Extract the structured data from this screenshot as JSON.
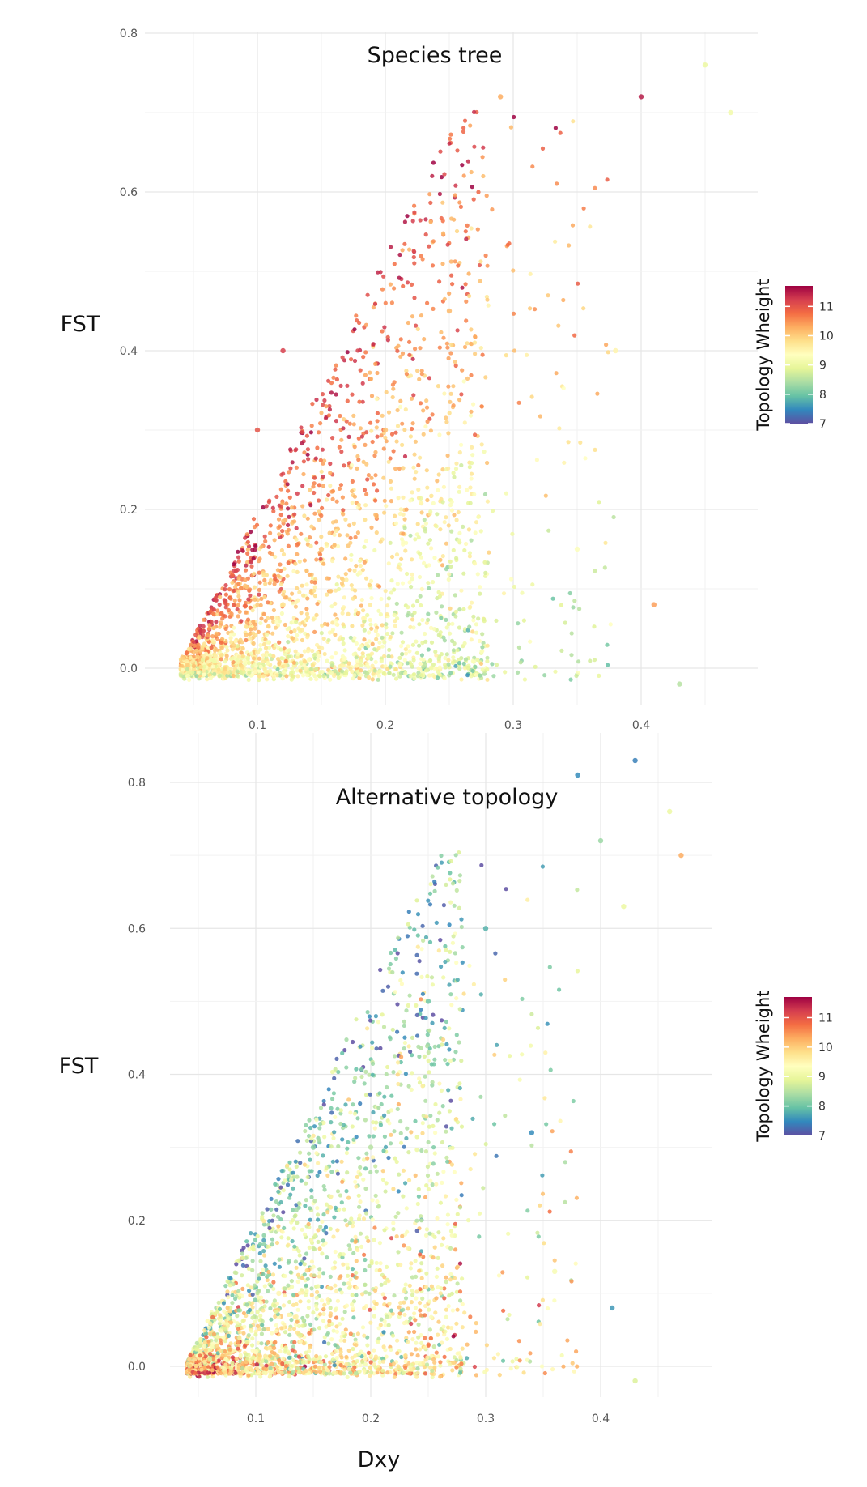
{
  "figure": {
    "xlabel": "Dxy"
  },
  "chart_data": [
    {
      "type": "scatter",
      "title": "Species tree",
      "xlabel": "",
      "ylabel": "FST",
      "xlim": [
        0.03,
        0.49
      ],
      "ylim": [
        -0.05,
        0.8
      ],
      "xticks": [
        0.1,
        0.2,
        0.3,
        0.4
      ],
      "xtick_labels": [
        "0.1",
        "0.2",
        "0.3",
        "0.4"
      ],
      "yticks": [
        0.0,
        0.2,
        0.4,
        0.6,
        0.8
      ],
      "ytick_labels": [
        "0.0",
        "0.2",
        "0.4",
        "0.6",
        "0.8"
      ],
      "grid": true,
      "color_scale": {
        "title": "Topology Wheight",
        "min": 7,
        "max": 11.7,
        "ticks": [
          7,
          8,
          9,
          10,
          11
        ],
        "tick_labels": [
          "7",
          "8",
          "9",
          "10",
          "11"
        ],
        "palette": [
          "#5e4fa2",
          "#3288bd",
          "#66c2a5",
          "#abdda4",
          "#e6f598",
          "#ffffbf",
          "#fee08b",
          "#fdae61",
          "#f46d43",
          "#d53e4f",
          "#9e0142"
        ]
      },
      "points": [
        [
          0.1,
          0.02,
          9.6
        ],
        [
          0.12,
          0.08,
          9.8
        ],
        [
          0.15,
          0.15,
          10.1
        ],
        [
          0.18,
          0.12,
          9.4
        ],
        [
          0.1,
          0.3,
          11.0
        ],
        [
          0.12,
          0.4,
          11.2
        ],
        [
          0.2,
          0.3,
          10.1
        ],
        [
          0.25,
          0.45,
          10.2
        ],
        [
          0.29,
          0.72,
          10.3
        ],
        [
          0.4,
          0.72,
          11.5
        ],
        [
          0.45,
          0.76,
          9.0
        ],
        [
          0.47,
          0.7,
          9.1
        ],
        [
          0.41,
          0.08,
          10.4
        ],
        [
          0.43,
          -0.02,
          8.5
        ],
        [
          0.35,
          0.15,
          9.3
        ],
        [
          0.38,
          0.4,
          9.5
        ]
      ]
    },
    {
      "type": "scatter",
      "title": "Alternative topology",
      "xlabel": "",
      "ylabel": "FST",
      "xlim": [
        0.03,
        0.49
      ],
      "ylim": [
        -0.04,
        0.86
      ],
      "xticks": [
        0.1,
        0.2,
        0.3,
        0.4
      ],
      "xtick_labels": [
        "0.1",
        "0.2",
        "0.3",
        "0.4"
      ],
      "yticks": [
        0.0,
        0.2,
        0.4,
        0.6,
        0.8
      ],
      "ytick_labels": [
        "0.0",
        "0.2",
        "0.4",
        "0.6",
        "0.8"
      ],
      "grid": true,
      "color_scale": {
        "title": "Topology Wheight",
        "min": 7,
        "max": 11.7,
        "ticks": [
          7,
          8,
          9,
          10,
          11
        ],
        "tick_labels": [
          "7",
          "8",
          "9",
          "10",
          "11"
        ],
        "palette": [
          "#5e4fa2",
          "#3288bd",
          "#66c2a5",
          "#abdda4",
          "#e6f598",
          "#ffffbf",
          "#fee08b",
          "#fdae61",
          "#f46d43",
          "#d53e4f",
          "#9e0142"
        ]
      },
      "points": [
        [
          0.1,
          0.02,
          9.4
        ],
        [
          0.12,
          0.1,
          9.5
        ],
        [
          0.15,
          0.3,
          8.2
        ],
        [
          0.2,
          0.3,
          8.5
        ],
        [
          0.25,
          0.5,
          8.0
        ],
        [
          0.3,
          0.6,
          7.8
        ],
        [
          0.38,
          0.81,
          7.5
        ],
        [
          0.43,
          0.83,
          7.4
        ],
        [
          0.46,
          0.76,
          9.0
        ],
        [
          0.47,
          0.7,
          10.3
        ],
        [
          0.41,
          0.08,
          7.6
        ],
        [
          0.4,
          0.72,
          8.3
        ],
        [
          0.43,
          -0.02,
          8.8
        ],
        [
          0.36,
          0.13,
          9.2
        ],
        [
          0.34,
          0.32,
          7.5
        ],
        [
          0.42,
          0.63,
          9.0
        ]
      ]
    }
  ]
}
